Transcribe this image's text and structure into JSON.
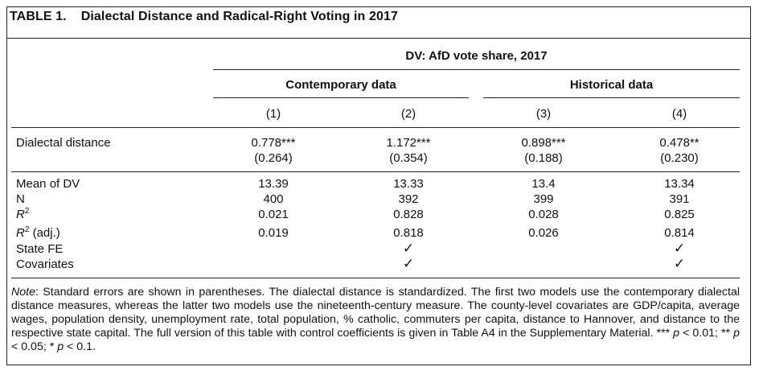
{
  "table": {
    "label": "TABLE 1.",
    "title": "Dialectal Distance and Radical-Right Voting in 2017",
    "dv_header": "DV: AfD vote share, 2017",
    "group_headers": [
      "Contemporary data",
      "Historical data"
    ],
    "model_numbers": [
      "(1)",
      "(2)",
      "(3)",
      "(4)"
    ],
    "rows": {
      "dialectal_distance": {
        "label": "Dialectal distance",
        "coefs": [
          "0.778***",
          "1.172***",
          "0.898***",
          "0.478**"
        ],
        "ses": [
          "(0.264)",
          "(0.354)",
          "(0.188)",
          "(0.230)"
        ]
      },
      "mean_dv": {
        "label": "Mean of DV",
        "values": [
          "13.39",
          "13.33",
          "13.4",
          "13.34"
        ]
      },
      "n": {
        "label": "N",
        "values": [
          "400",
          "392",
          "399",
          "391"
        ]
      },
      "r2": {
        "label_main": "R",
        "label_sup": "2",
        "values": [
          "0.021",
          "0.828",
          "0.028",
          "0.825"
        ]
      },
      "r2_adj": {
        "label_main": "R",
        "label_sup": "2",
        "label_suffix": " (adj.)",
        "values": [
          "0.019",
          "0.818",
          "0.026",
          "0.814"
        ]
      },
      "state_fe": {
        "label": "State FE",
        "values": [
          "",
          "✓",
          "",
          "✓"
        ]
      },
      "covariates": {
        "label": "Covariates",
        "values": [
          "",
          "✓",
          "",
          "✓"
        ]
      }
    },
    "note": {
      "label": "Note",
      "text": ": Standard errors are shown in parentheses. The dialectal distance is standardized. The first two models use the contemporary dialectal distance measures, whereas the latter two models use the nineteenth-century measure. The county-level covariates are GDP/capita, average wages, population density, unemployment rate, total population, % catholic, commuters per capita, distance to Hannover, and distance to the respective state capital. The full version of this table with control coefficients is given in Table A4 in the Supplementary Material. ",
      "sig_1": "*** ",
      "sig_1_p": "p",
      "sig_1_val": " < 0.01; ",
      "sig_2": "** ",
      "sig_2_p": "p",
      "sig_2_val": " < 0.05; ",
      "sig_3": "* ",
      "sig_3_p": "p",
      "sig_3_val": " < 0.1."
    }
  }
}
